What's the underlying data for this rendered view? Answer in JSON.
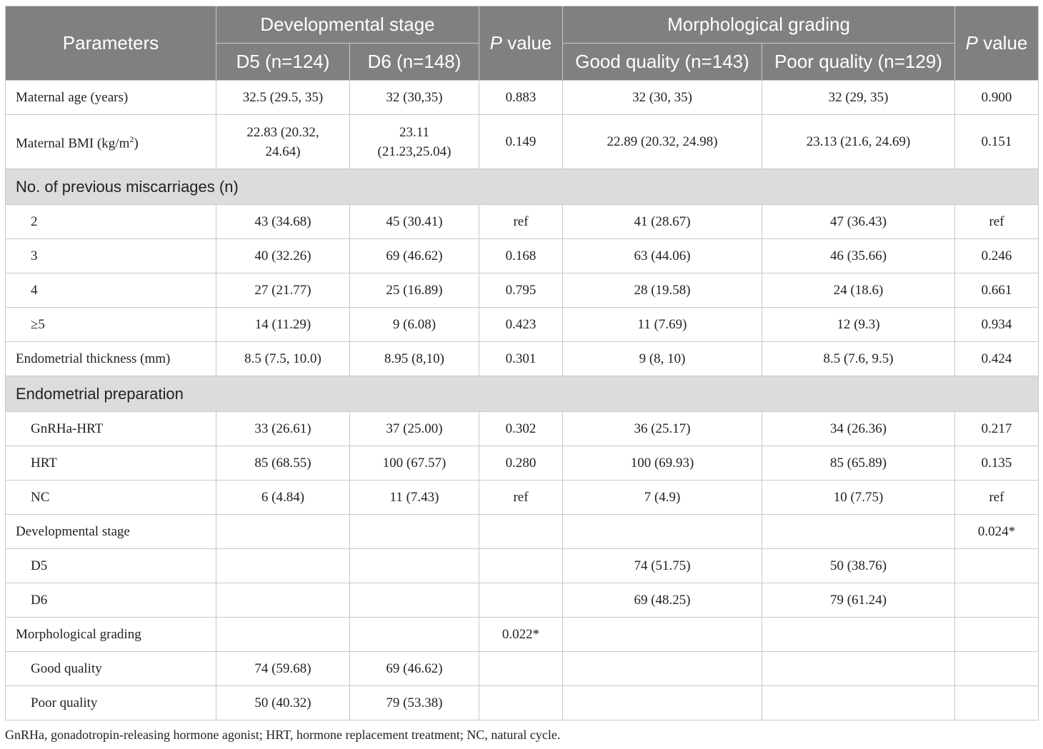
{
  "header": {
    "parameters": "Parameters",
    "dev_stage": "Developmental stage",
    "p_value_p": "P",
    "p_value_rest": " value",
    "morph_grading": "Morphological grading",
    "d5": "D5 (n=124)",
    "d6": "D6 (n=148)",
    "good": "Good quality (n=143)",
    "poor": "Poor quality (n=129)"
  },
  "rows": {
    "age": [
      "Maternal age (years)",
      "32.5 (29.5, 35)",
      "32 (30,35)",
      "0.883",
      "32 (30, 35)",
      "32 (29, 35)",
      "0.900"
    ],
    "bmi": {
      "label_pre": "Maternal BMI (kg/m",
      "label_sup": "2",
      "label_post": ")",
      "d5_line1": "22.83 (20.32,",
      "d5_line2": "24.64)",
      "d6_line1": "23.11",
      "d6_line2": "(21.23,25.04)",
      "p1": "0.149",
      "good": "22.89 (20.32, 24.98)",
      "poor": "23.13 (21.6, 24.69)",
      "p2": "0.151"
    },
    "sec_miscarriages": "No. of previous miscarriages (n)",
    "m2": [
      "2",
      "43 (34.68)",
      "45 (30.41)",
      "ref",
      "41 (28.67)",
      "47 (36.43)",
      "ref"
    ],
    "m3": [
      "3",
      "40 (32.26)",
      "69 (46.62)",
      "0.168",
      "63 (44.06)",
      "46 (35.66)",
      "0.246"
    ],
    "m4": [
      "4",
      "27 (21.77)",
      "25 (16.89)",
      "0.795",
      "28 (19.58)",
      "24 (18.6)",
      "0.661"
    ],
    "m5": [
      "≥5",
      "14 (11.29)",
      "9 (6.08)",
      "0.423",
      "11 (7.69)",
      "12 (9.3)",
      "0.934"
    ],
    "thickness": [
      "Endometrial thickness (mm)",
      "8.5 (7.5, 10.0)",
      "8.95 (8,10)",
      "0.301",
      "9 (8, 10)",
      "8.5 (7.6, 9.5)",
      "0.424"
    ],
    "sec_prep": "Endometrial preparation",
    "gnrha": [
      "GnRHa-HRT",
      "33 (26.61)",
      "37 (25.00)",
      "0.302",
      "36 (25.17)",
      "34 (26.36)",
      "0.217"
    ],
    "hrt": [
      "HRT",
      "85 (68.55)",
      "100 (67.57)",
      "0.280",
      "100 (69.93)",
      "85 (65.89)",
      "0.135"
    ],
    "nc": [
      "NC",
      "6 (4.84)",
      "11 (7.43)",
      "ref",
      "7 (4.9)",
      "10 (7.75)",
      "ref"
    ],
    "devstage": [
      "Developmental stage",
      "",
      "",
      "",
      "",
      "",
      "0.024*"
    ],
    "d5": [
      "D5",
      "",
      "",
      "",
      "74 (51.75)",
      "50 (38.76)",
      ""
    ],
    "d6": [
      "D6",
      "",
      "",
      "",
      "69 (48.25)",
      "79 (61.24)",
      ""
    ],
    "morph": [
      "Morphological grading",
      "",
      "",
      "0.022*",
      "",
      "",
      ""
    ],
    "goodq": [
      "Good quality",
      "74 (59.68)",
      "69 (46.62)",
      "",
      "",
      "",
      ""
    ],
    "poorq": [
      "Poor quality",
      "50 (40.32)",
      "79 (53.38)",
      "",
      "",
      "",
      ""
    ]
  },
  "footnote": "GnRHa, gonadotropin-releasing hormone agonist; HRT, hormone replacement treatment; NC, natural cycle."
}
